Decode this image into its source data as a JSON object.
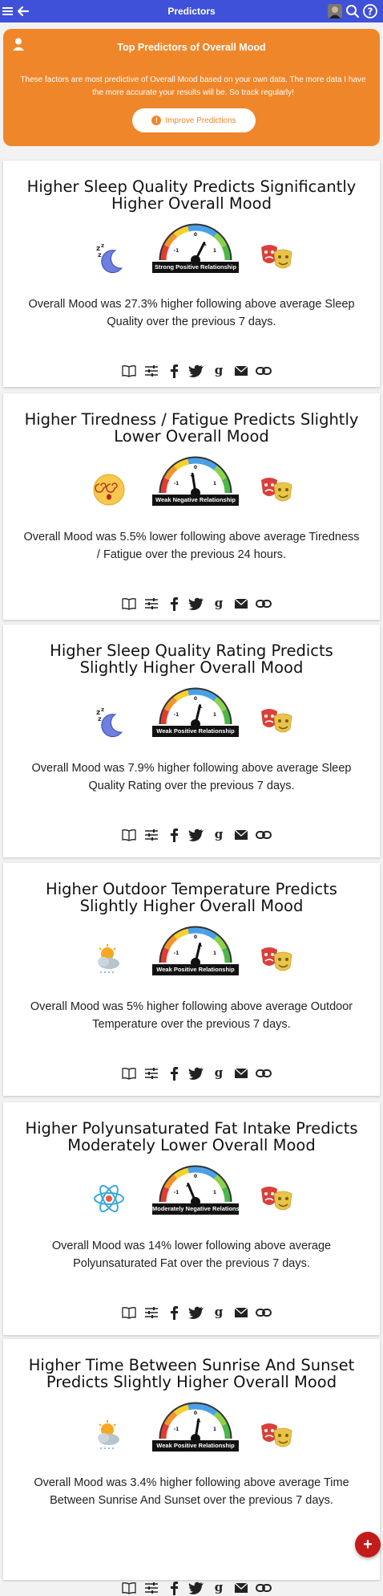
{
  "header": {
    "title": "Predictors"
  },
  "banner": {
    "title": "Top Predictors of Overall Mood",
    "description": "These factors are most predictive of Overall Mood based on your own data. The more data I have the more accurate your results will be. So track regularly!",
    "button_label": "Improve Predictions",
    "button_icon": "!"
  },
  "gauge_ticks": {
    "neg": "-1",
    "zero": "0",
    "pos": "1"
  },
  "fab_label": "+",
  "cards": [
    {
      "title": "Higher Sleep Quality Predicts Significantly Higher Overall Mood",
      "gauge_label": "Strong Positive Relationship",
      "gauge_value": 0.3,
      "cause_icon": "sleep-icon",
      "description": "Overall Mood was 27.3% higher following above average Sleep Quality over the previous 7 days."
    },
    {
      "title": "Higher Tiredness / Fatigue Predicts Slightly Lower Overall Mood",
      "gauge_label": "Weak Negative Relationship",
      "gauge_value": -0.1,
      "cause_icon": "dizzy-face-icon",
      "description": "Overall Mood was 5.5% lower following above average Tiredness / Fatigue over the previous 24 hours."
    },
    {
      "title": "Higher Sleep Quality Rating Predicts Slightly Higher Overall Mood",
      "gauge_label": "Weak Positive Relationship",
      "gauge_value": 0.15,
      "cause_icon": "sleep-icon",
      "description": "Overall Mood was 7.9% higher following above average Sleep Quality Rating over the previous 7 days."
    },
    {
      "title": "Higher Outdoor Temperature Predicts Slightly Higher Overall Mood",
      "gauge_label": "Weak Positive Relationship",
      "gauge_value": 0.15,
      "cause_icon": "weather-icon",
      "description": "Overall Mood was 5% higher following above average Outdoor Temperature over the previous 7 days."
    },
    {
      "title": "Higher Polyunsaturated Fat Intake Predicts Moderately Lower Overall Mood",
      "gauge_label": "Moderately Negative Relationship",
      "gauge_value": -0.25,
      "cause_icon": "atom-icon",
      "description": "Overall Mood was 14% lower following above average Polyunsaturated Fat over the previous 7 days."
    },
    {
      "title": "Higher Time Between Sunrise And Sunset Predicts Slightly Higher Overall Mood",
      "gauge_label": "Weak Positive Relationship",
      "gauge_value": 0.1,
      "cause_icon": "weather-icon",
      "description": "Overall Mood was 3.4% higher following above average Time Between Sunrise And Sunset over the previous 7 days."
    }
  ],
  "share_icons": [
    "book-icon",
    "sliders-icon",
    "facebook-icon",
    "twitter-icon",
    "google-icon",
    "email-icon",
    "link-icon"
  ]
}
